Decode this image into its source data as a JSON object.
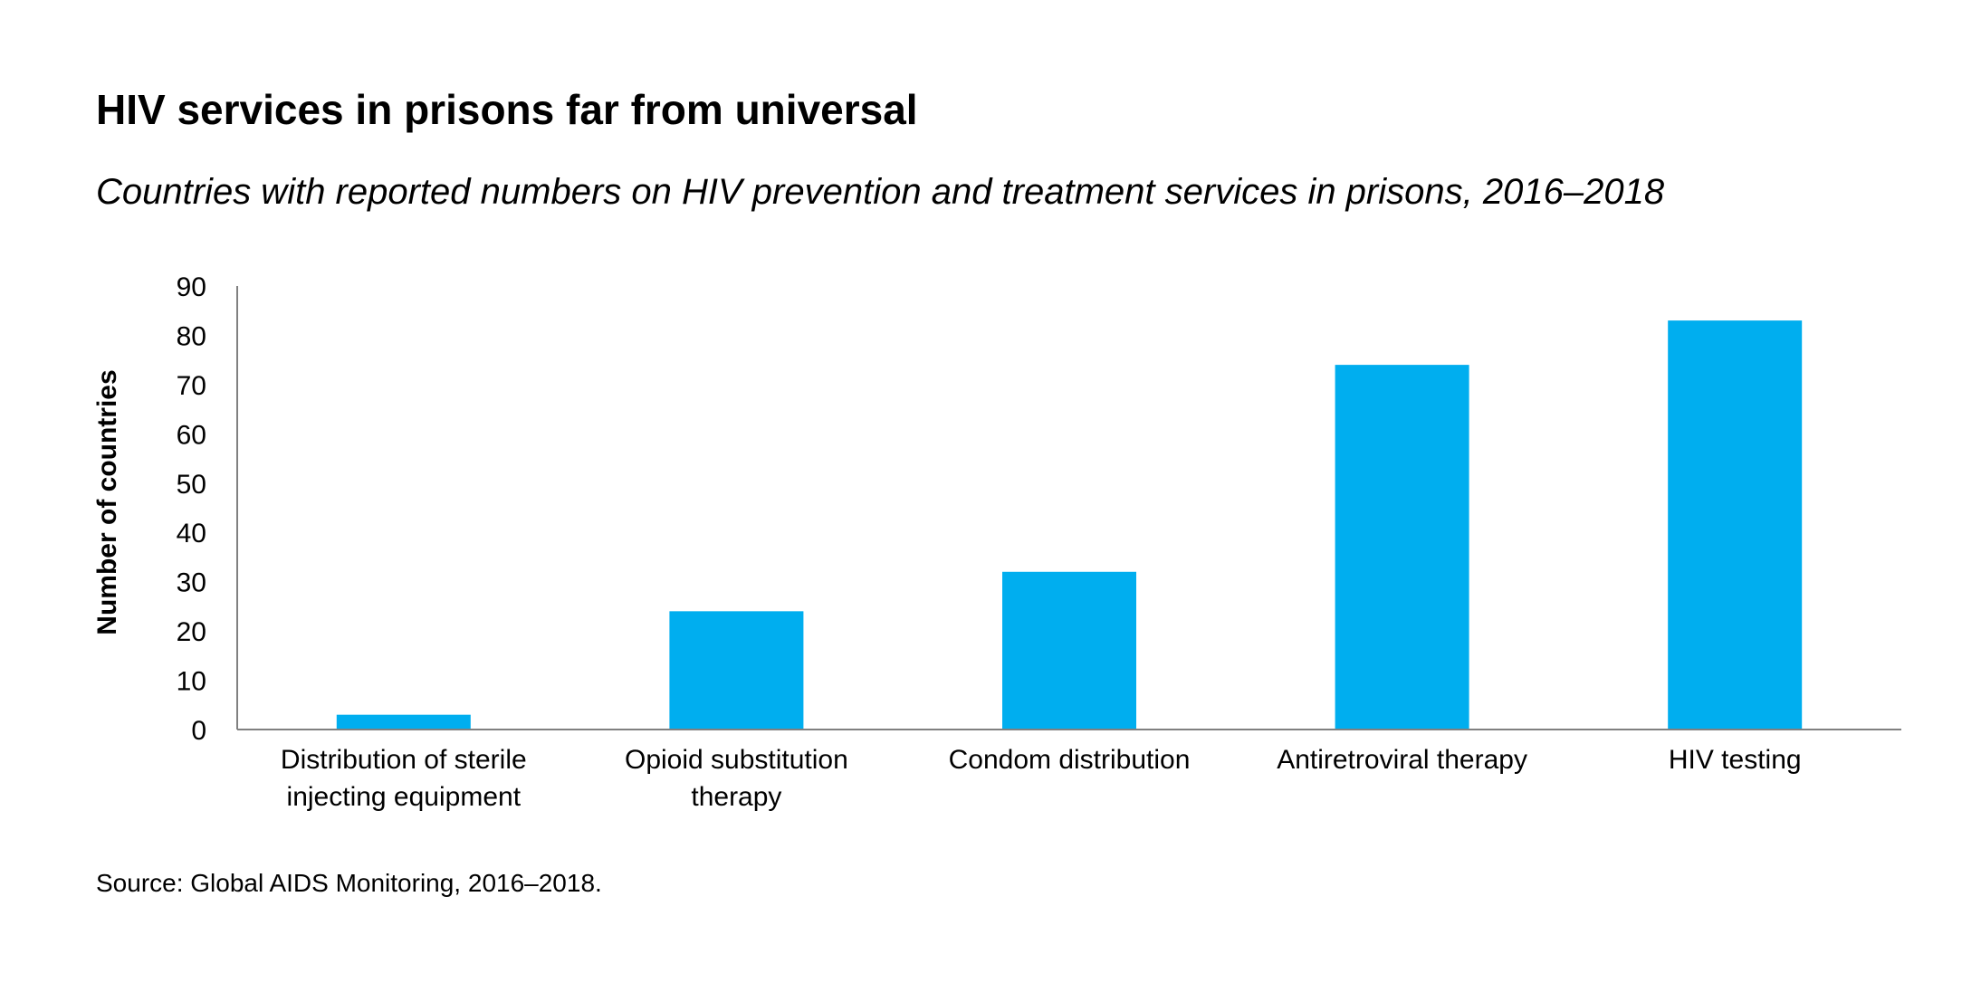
{
  "title": "HIV services in prisons far from universal",
  "subtitle": "Countries with reported numbers on HIV prevention and treatment services in prisons, 2016–2018",
  "source": "Source: Global AIDS Monitoring, 2016–2018.",
  "colors": {
    "bar": "#00AEEF",
    "axis": "#808080",
    "text": "#000000"
  },
  "chart_data": {
    "type": "bar",
    "title": "HIV services in prisons far from universal",
    "subtitle": "Countries with reported numbers on HIV prevention and treatment services in prisons, 2016–2018",
    "ylabel": "Number of countries",
    "xlabel": "",
    "categories": [
      [
        "Distribution of sterile",
        "injecting equipment"
      ],
      [
        "Opioid substitution",
        "therapy"
      ],
      [
        "Condom distribution"
      ],
      [
        "Antiretroviral therapy"
      ],
      [
        "HIV testing"
      ]
    ],
    "values": [
      3,
      24,
      32,
      74,
      83
    ],
    "ylim": [
      0,
      90
    ],
    "yticks": [
      0,
      10,
      20,
      30,
      40,
      50,
      60,
      70,
      80,
      90
    ],
    "grid": false,
    "legend": "none"
  }
}
